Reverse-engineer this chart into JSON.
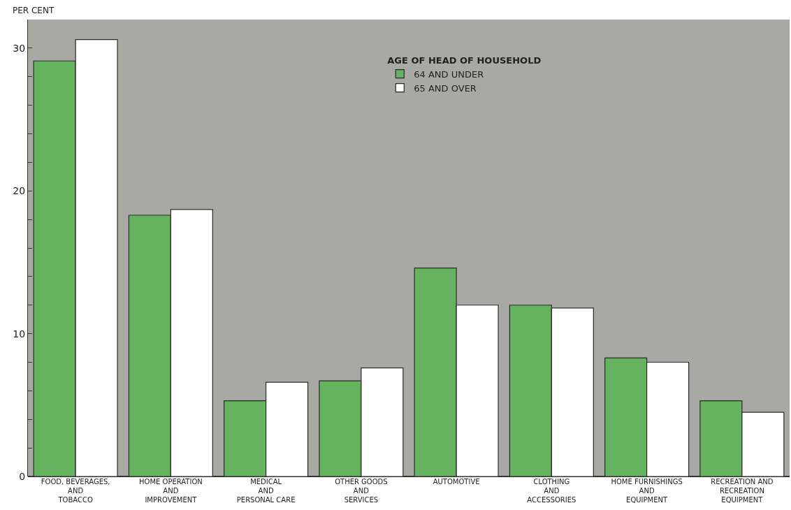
{
  "chart_data": {
    "type": "bar",
    "ylabel": "PER CENT",
    "legend_title": "AGE OF HEAD OF HOUSEHOLD",
    "categories": [
      "FOOD, BEVERAGES,\nAND\nTOBACCO",
      "HOME OPERATION\nAND\nIMPROVEMENT",
      "MEDICAL\nAND\nPERSONAL CARE",
      "OTHER GOODS\nAND\nSERVICES",
      "AUTOMOTIVE",
      "CLOTHING\nAND\nACCESSORIES",
      "HOME FURNISHINGS\nAND\nEQUIPMENT",
      "RECREATION AND\nRECREATION\nEQUIPMENT"
    ],
    "series": [
      {
        "name": "64 AND UNDER",
        "color": "#66b35f",
        "values": [
          29.1,
          18.3,
          5.3,
          6.7,
          14.6,
          12.0,
          8.3,
          5.3
        ]
      },
      {
        "name": "65 AND OVER",
        "color": "#ffffff",
        "values": [
          30.6,
          18.7,
          6.6,
          7.6,
          12.0,
          11.8,
          8.0,
          4.5
        ]
      }
    ],
    "ylim": [
      0,
      32
    ],
    "yticks": [
      0,
      {
        "value": 2,
        "label": null
      },
      {
        "value": 4,
        "label": null
      },
      {
        "value": 6,
        "label": null
      },
      {
        "value": 8,
        "label": null
      },
      10,
      {
        "value": 12,
        "label": null
      },
      {
        "value": 14,
        "label": null
      },
      {
        "value": 16,
        "label": null
      },
      {
        "value": 18,
        "label": null
      },
      20,
      {
        "value": 22,
        "label": null
      },
      {
        "value": 24,
        "label": null
      },
      {
        "value": 26,
        "label": null
      },
      {
        "value": 28,
        "label": null
      },
      30
    ],
    "grid": false,
    "legend": "top"
  }
}
